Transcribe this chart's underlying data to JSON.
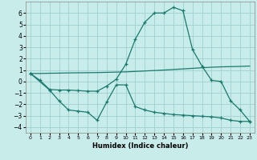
{
  "xlabel": "Humidex (Indice chaleur)",
  "xlim": [
    -0.5,
    23.5
  ],
  "ylim": [
    -4.5,
    7.0
  ],
  "yticks": [
    -4,
    -3,
    -2,
    -1,
    0,
    1,
    2,
    3,
    4,
    5,
    6
  ],
  "xticks": [
    0,
    1,
    2,
    3,
    4,
    5,
    6,
    7,
    8,
    9,
    10,
    11,
    12,
    13,
    14,
    15,
    16,
    17,
    18,
    19,
    20,
    21,
    22,
    23
  ],
  "bg_color": "#c8ecea",
  "grid_color": "#a0d0ce",
  "line_color": "#1a7a6e",
  "line1_x": [
    0,
    1,
    2,
    3,
    4,
    5,
    6,
    7,
    8,
    9,
    10,
    11,
    12,
    13,
    14,
    15,
    16,
    17,
    18,
    19,
    20,
    21,
    22,
    23
  ],
  "line1_y": [
    0.7,
    0.1,
    -0.7,
    -0.75,
    -0.75,
    -0.8,
    -0.85,
    -0.85,
    -0.4,
    0.2,
    1.5,
    3.7,
    5.2,
    6.0,
    6.0,
    6.5,
    6.2,
    2.8,
    1.35,
    0.1,
    0.0,
    -1.7,
    -2.5,
    -3.5
  ],
  "line2_x": [
    0,
    2,
    3,
    4,
    5,
    6,
    7,
    8,
    9,
    10,
    11,
    12,
    13,
    14,
    15,
    16,
    17,
    18,
    19,
    20,
    21,
    22,
    23
  ],
  "line2_y": [
    0.7,
    -0.75,
    -1.7,
    -2.5,
    -2.6,
    -2.7,
    -3.4,
    -1.8,
    -0.3,
    -0.3,
    -2.2,
    -2.5,
    -2.7,
    -2.8,
    -2.9,
    -2.95,
    -3.0,
    -3.05,
    -3.1,
    -3.2,
    -3.4,
    -3.5,
    -3.5
  ],
  "line3_x": [
    0,
    1,
    2,
    3,
    4,
    5,
    6,
    7,
    8,
    9,
    10,
    11,
    12,
    13,
    14,
    15,
    16,
    17,
    18,
    19,
    20,
    21,
    22,
    23
  ],
  "line3_y": [
    0.7,
    0.7,
    0.72,
    0.73,
    0.75,
    0.76,
    0.77,
    0.78,
    0.8,
    0.82,
    0.84,
    0.88,
    0.92,
    0.96,
    1.0,
    1.05,
    1.1,
    1.15,
    1.2,
    1.25,
    1.28,
    1.3,
    1.32,
    1.35
  ]
}
